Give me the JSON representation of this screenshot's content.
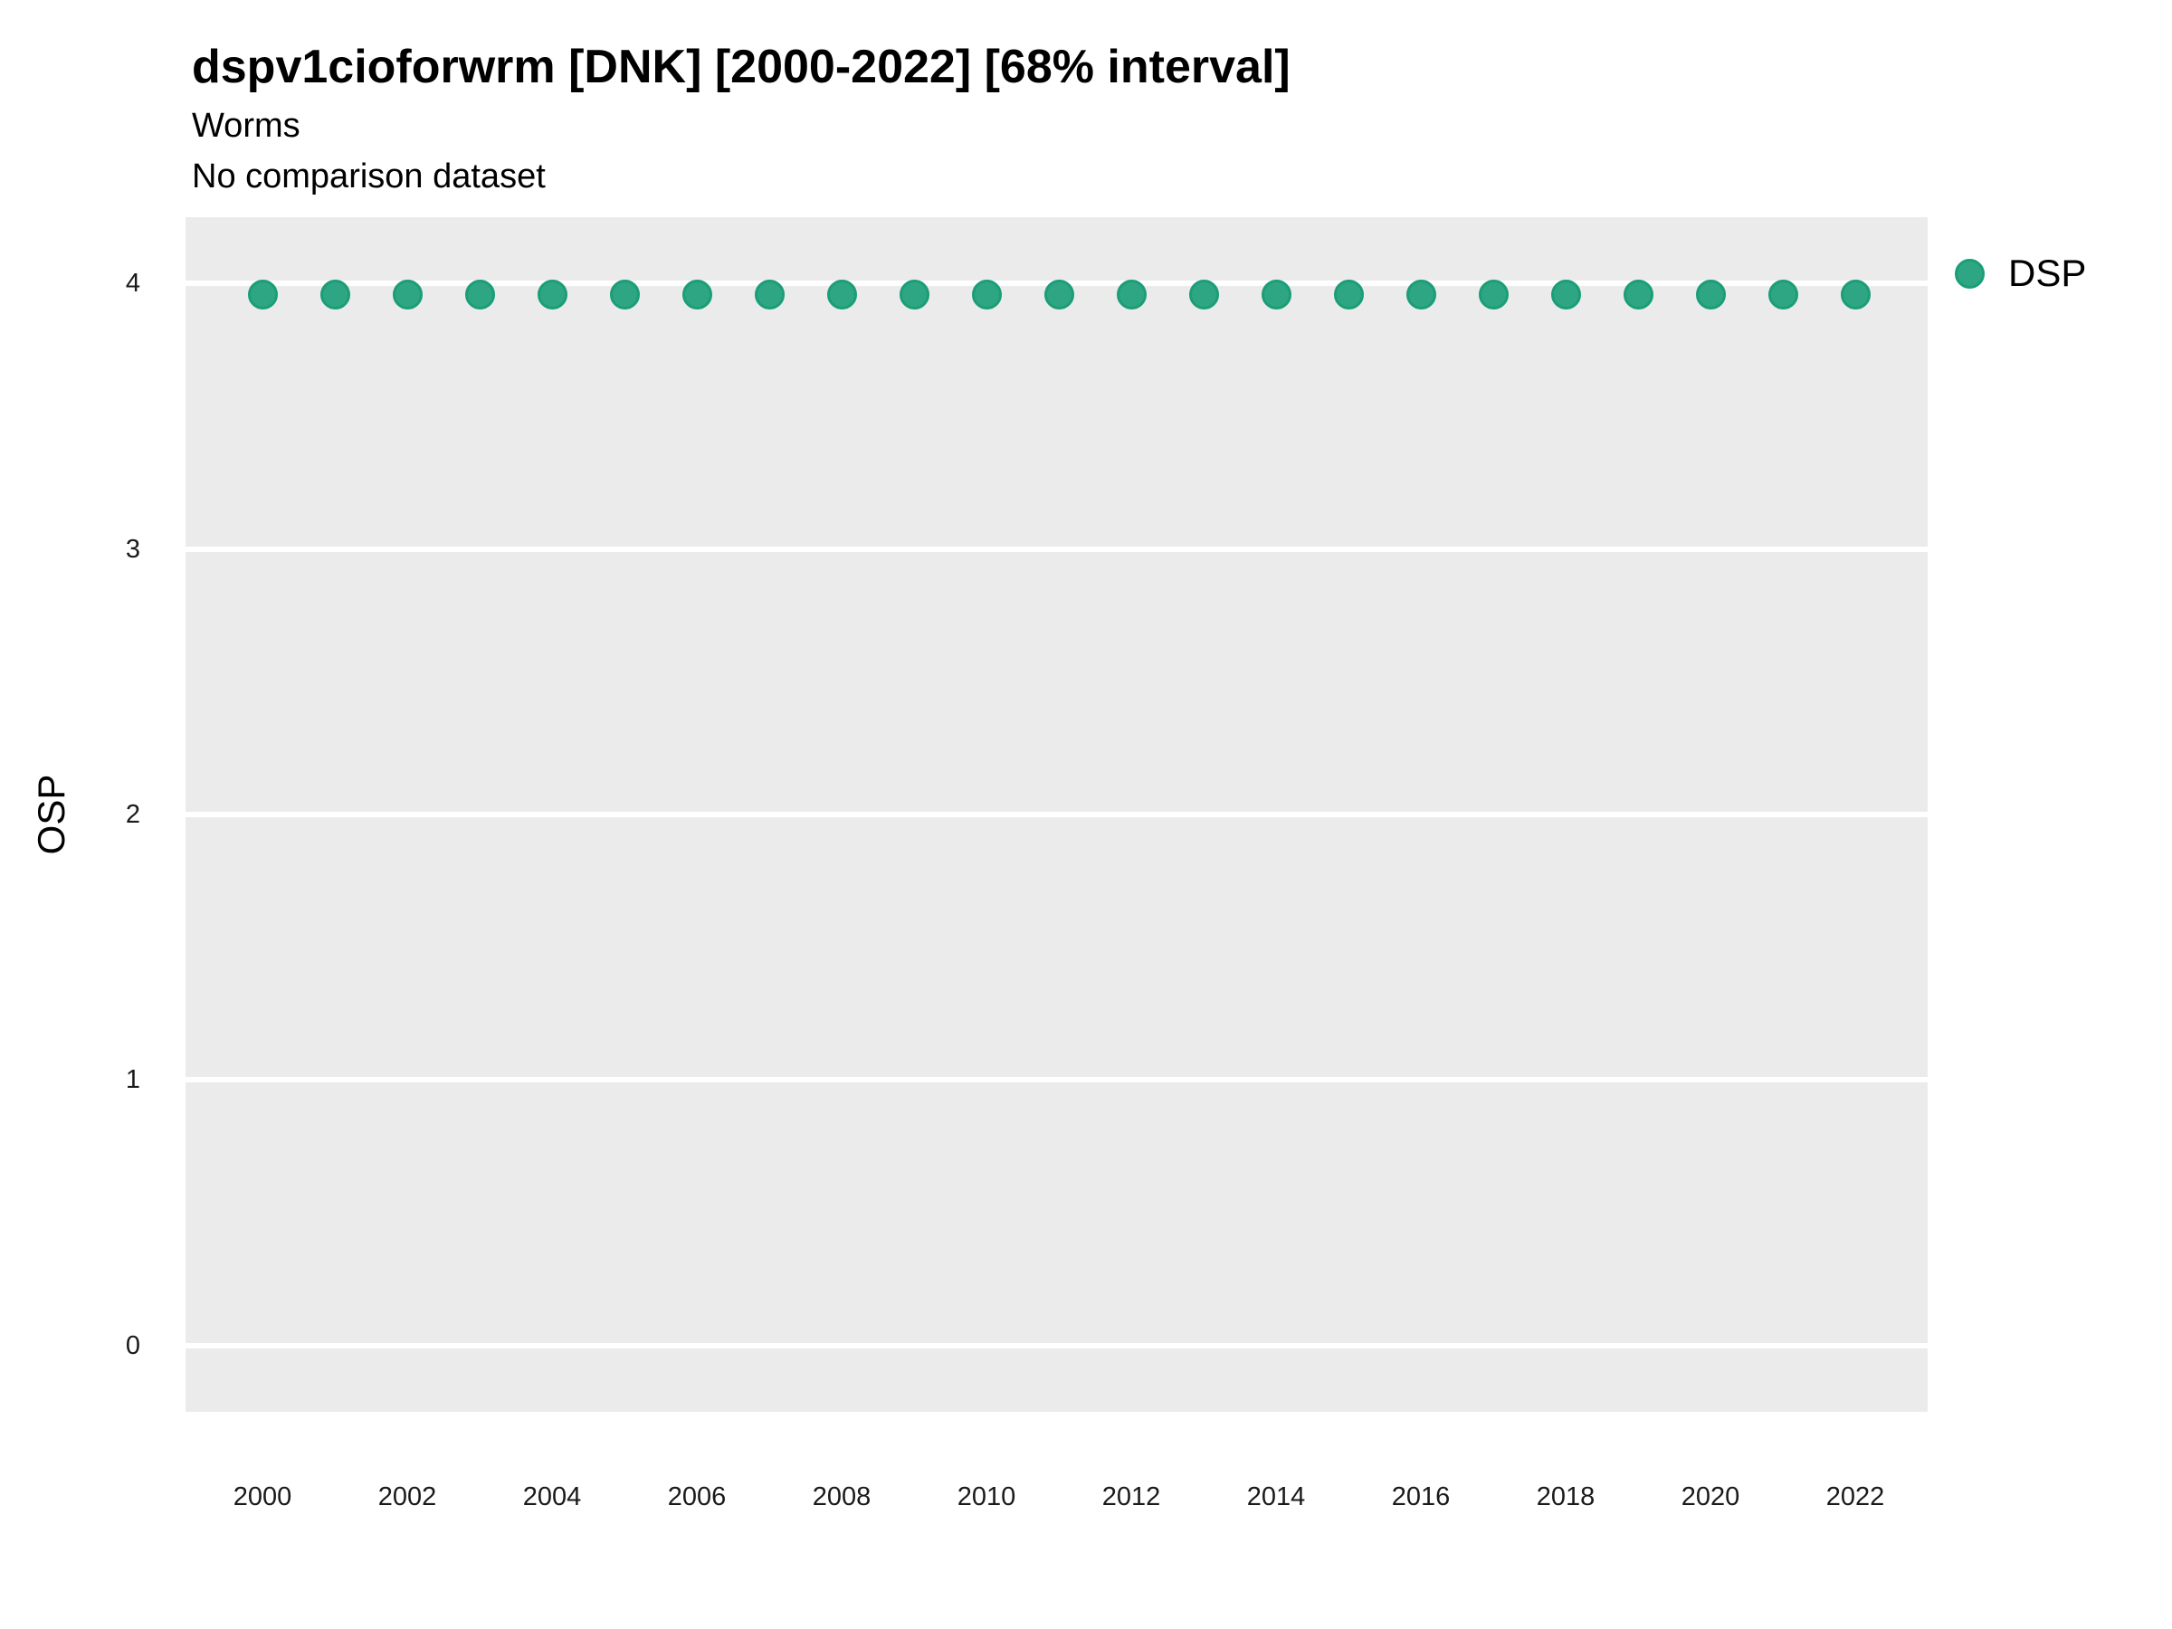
{
  "header": {
    "title": "dspv1cioforwrm [DNK] [2000-2022] [68% interval]",
    "subtitle": "Worms",
    "comparison_note": "No comparison dataset"
  },
  "legend": {
    "items": [
      {
        "label": "DSP",
        "marker": "circle-icon",
        "color": "#1b9e77"
      }
    ],
    "position": "right-top"
  },
  "colors": {
    "point_fill": "#2ea683",
    "point_stroke": "#1b9e77",
    "panel_background": "#ebebeb",
    "gridline": "#ffffff",
    "text": "#000000"
  },
  "chart_data": {
    "type": "scatter",
    "title": "dspv1cioforwrm [DNK] [2000-2022] [68% interval]",
    "subtitle": "Worms",
    "subtitle2": "No comparison dataset",
    "xlabel": "",
    "ylabel": "OSP",
    "ylim": [
      -0.25,
      4.25
    ],
    "yticks": [
      0,
      1,
      2,
      3,
      4
    ],
    "xticks": [
      2000,
      2002,
      2004,
      2006,
      2008,
      2010,
      2012,
      2014,
      2016,
      2018,
      2020,
      2022
    ],
    "grid": "horizontal-major-only",
    "legend_position": "right-top",
    "series": [
      {
        "name": "DSP",
        "x": [
          2000,
          2001,
          2002,
          2003,
          2004,
          2005,
          2006,
          2007,
          2008,
          2009,
          2010,
          2011,
          2012,
          2013,
          2014,
          2015,
          2016,
          2017,
          2018,
          2019,
          2020,
          2021,
          2022
        ],
        "y": [
          3.96,
          3.96,
          3.96,
          3.96,
          3.96,
          3.96,
          3.96,
          3.96,
          3.96,
          3.96,
          3.96,
          3.96,
          3.96,
          3.96,
          3.96,
          3.96,
          3.96,
          3.96,
          3.96,
          3.96,
          3.96,
          3.96,
          3.96
        ]
      }
    ]
  }
}
